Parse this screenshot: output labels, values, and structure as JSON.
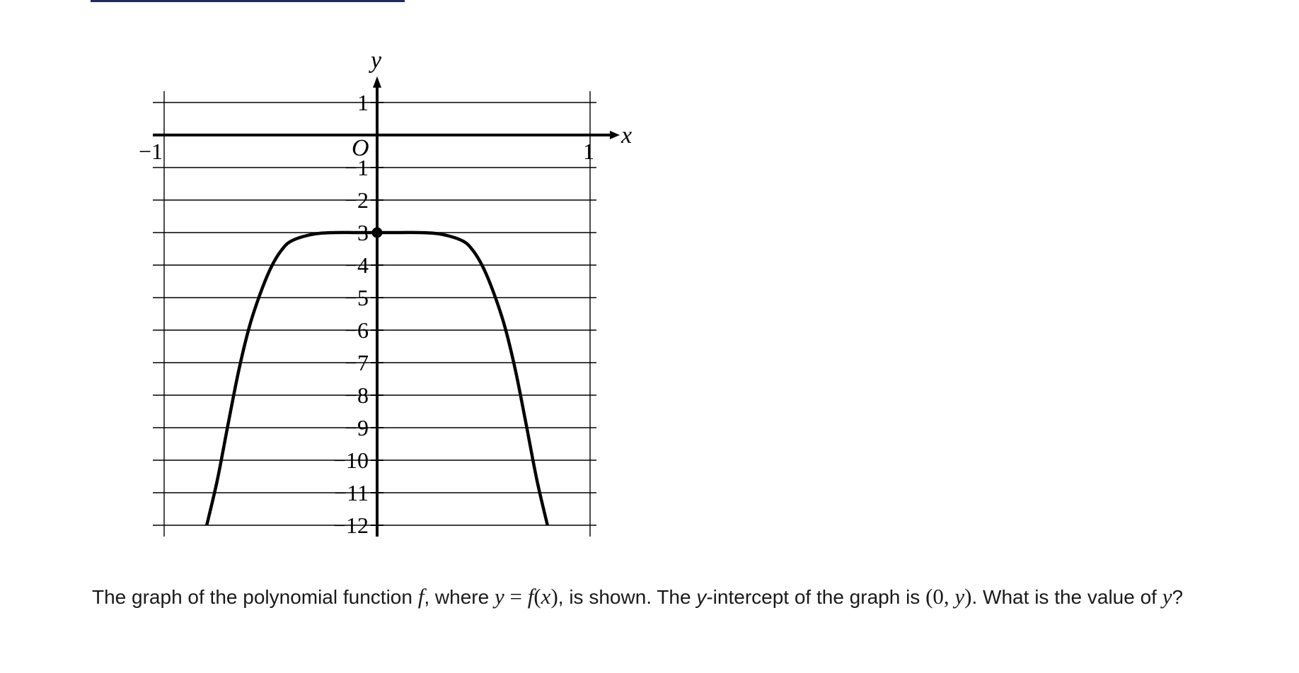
{
  "chart_data": {
    "type": "line",
    "title": "",
    "xlabel": "x",
    "ylabel": "y",
    "xlim": [
      -1,
      1
    ],
    "ylim": [
      -12,
      1
    ],
    "grid": true,
    "origin_label": "O",
    "x_ticks": [
      {
        "value": -1,
        "label": "−1"
      },
      {
        "value": 1,
        "label": "1"
      }
    ],
    "y_ticks": [
      {
        "value": 1,
        "label": "1"
      },
      {
        "value": -1,
        "label": "−1"
      },
      {
        "value": -2,
        "label": "−2"
      },
      {
        "value": -3,
        "label": "−3"
      },
      {
        "value": -4,
        "label": "−4"
      },
      {
        "value": -5,
        "label": "−5"
      },
      {
        "value": -6,
        "label": "−6"
      },
      {
        "value": -7,
        "label": "−7"
      },
      {
        "value": -8,
        "label": "−8"
      },
      {
        "value": -9,
        "label": "−9"
      },
      {
        "value": -10,
        "label": "−10"
      },
      {
        "value": -11,
        "label": "−11"
      },
      {
        "value": -12,
        "label": "−12"
      }
    ],
    "series": [
      {
        "x": [
          -0.8,
          -0.75,
          -0.7,
          -0.65,
          -0.6,
          -0.55,
          -0.5,
          -0.45,
          -0.4,
          -0.3,
          -0.2,
          -0.1,
          0,
          0.1,
          0.2,
          0.3,
          0.4,
          0.45,
          0.5,
          0.55,
          0.6,
          0.65,
          0.7,
          0.75,
          0.8
        ],
        "y": [
          -12,
          -10.6,
          -8.9,
          -7.25,
          -5.9,
          -4.9,
          -4.1,
          -3.55,
          -3.25,
          -3.05,
          -3.0,
          -3.0,
          -3.0,
          -3.0,
          -3.0,
          -3.05,
          -3.25,
          -3.55,
          -4.1,
          -4.9,
          -5.9,
          -7.25,
          -8.9,
          -10.6,
          -12
        ]
      }
    ],
    "points": [
      {
        "x": 0,
        "y": -3
      }
    ]
  },
  "question": {
    "part1": "The graph of the polynomial function ",
    "f": "f",
    "part2": ", where ",
    "equation_lhs": "y",
    "equals": " = ",
    "equation_rhs_f": "f",
    "equation_rhs_open": "(",
    "equation_rhs_x": "x",
    "equation_rhs_close": ")",
    "part3": ", is shown. The ",
    "y_letter": "y",
    "part4": "-intercept of the graph is ",
    "point_open": "(0, ",
    "point_y": "y",
    "point_close": ")",
    "part5": ". What is the value of ",
    "final_y": "y",
    "part6": "?"
  }
}
